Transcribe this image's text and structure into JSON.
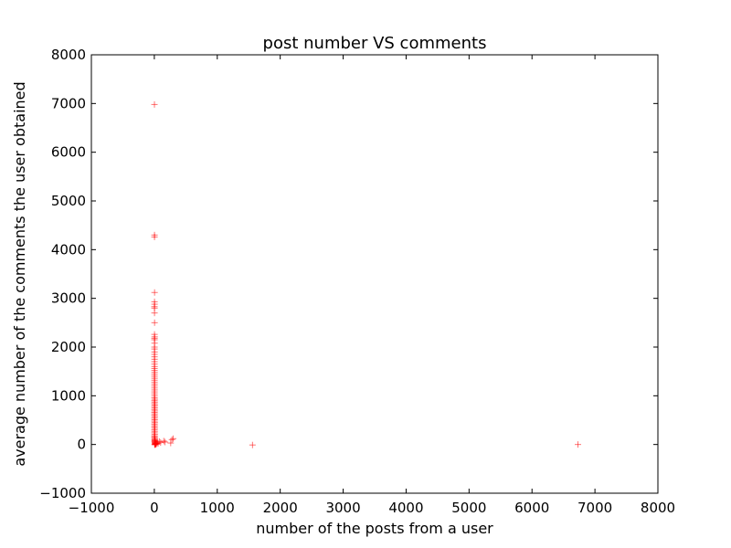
{
  "chart_data": {
    "type": "scatter",
    "title": "post number VS comments",
    "xlabel": "number of the posts from a user",
    "ylabel": "average number of the comments the user obtained",
    "xlim": [
      -1000,
      8000
    ],
    "ylim": [
      -1000,
      8000
    ],
    "xticks": [
      -1000,
      0,
      1000,
      2000,
      3000,
      4000,
      5000,
      6000,
      7000,
      8000
    ],
    "yticks": [
      -1000,
      0,
      1000,
      2000,
      3000,
      4000,
      5000,
      6000,
      7000,
      8000
    ],
    "grid": false,
    "legend": "none",
    "marker": "+",
    "color": "#ff0000",
    "series": [
      {
        "points": [
          [
            2,
            6980
          ],
          [
            3,
            4300
          ],
          [
            3,
            4260
          ],
          [
            4,
            3120
          ],
          [
            3,
            2930
          ],
          [
            4,
            2880
          ],
          [
            2,
            2830
          ],
          [
            3,
            2800
          ],
          [
            3,
            2700
          ],
          [
            4,
            2500
          ],
          [
            3,
            2260
          ],
          [
            5,
            2210
          ],
          [
            3,
            2180
          ],
          [
            3,
            2150
          ],
          [
            4,
            2080
          ],
          [
            3,
            2000
          ],
          [
            3,
            1960
          ],
          [
            4,
            1900
          ],
          [
            3,
            1850
          ],
          [
            3,
            1800
          ],
          [
            4,
            1750
          ],
          [
            3,
            1700
          ],
          [
            3,
            1650
          ],
          [
            4,
            1600
          ],
          [
            3,
            1560
          ],
          [
            3,
            1520
          ],
          [
            4,
            1480
          ],
          [
            3,
            1440
          ],
          [
            3,
            1400
          ],
          [
            4,
            1360
          ],
          [
            3,
            1320
          ],
          [
            3,
            1280
          ],
          [
            4,
            1240
          ],
          [
            3,
            1200
          ],
          [
            3,
            1160
          ],
          [
            4,
            1120
          ],
          [
            3,
            1080
          ],
          [
            3,
            1040
          ],
          [
            4,
            1000
          ],
          [
            3,
            960
          ],
          [
            6,
            930
          ],
          [
            3,
            900
          ],
          [
            5,
            870
          ],
          [
            3,
            840
          ],
          [
            6,
            810
          ],
          [
            3,
            780
          ],
          [
            5,
            750
          ],
          [
            3,
            720
          ],
          [
            6,
            690
          ],
          [
            3,
            660
          ],
          [
            5,
            630
          ],
          [
            3,
            600
          ],
          [
            6,
            570
          ],
          [
            3,
            540
          ],
          [
            5,
            510
          ],
          [
            3,
            480
          ],
          [
            6,
            450
          ],
          [
            3,
            420
          ],
          [
            5,
            390
          ],
          [
            3,
            360
          ],
          [
            6,
            330
          ],
          [
            3,
            300
          ],
          [
            5,
            270
          ],
          [
            3,
            240
          ],
          [
            6,
            210
          ],
          [
            3,
            180
          ],
          [
            5,
            160
          ],
          [
            3,
            140
          ],
          [
            8,
            120
          ],
          [
            4,
            100
          ],
          [
            10,
            90
          ],
          [
            6,
            80
          ],
          [
            12,
            70
          ],
          [
            5,
            60
          ],
          [
            15,
            50
          ],
          [
            8,
            40
          ],
          [
            20,
            30
          ],
          [
            10,
            25
          ],
          [
            25,
            20
          ],
          [
            12,
            15
          ],
          [
            30,
            10
          ],
          [
            15,
            5
          ],
          [
            5,
            0
          ],
          [
            10,
            -5
          ],
          [
            20,
            0
          ],
          [
            40,
            30
          ],
          [
            60,
            20
          ],
          [
            80,
            60
          ],
          [
            100,
            40
          ],
          [
            150,
            70
          ],
          [
            170,
            50
          ],
          [
            260,
            30
          ],
          [
            280,
            100
          ],
          [
            300,
            120
          ],
          [
            1560,
            -10
          ],
          [
            6730,
            0
          ]
        ]
      }
    ]
  }
}
